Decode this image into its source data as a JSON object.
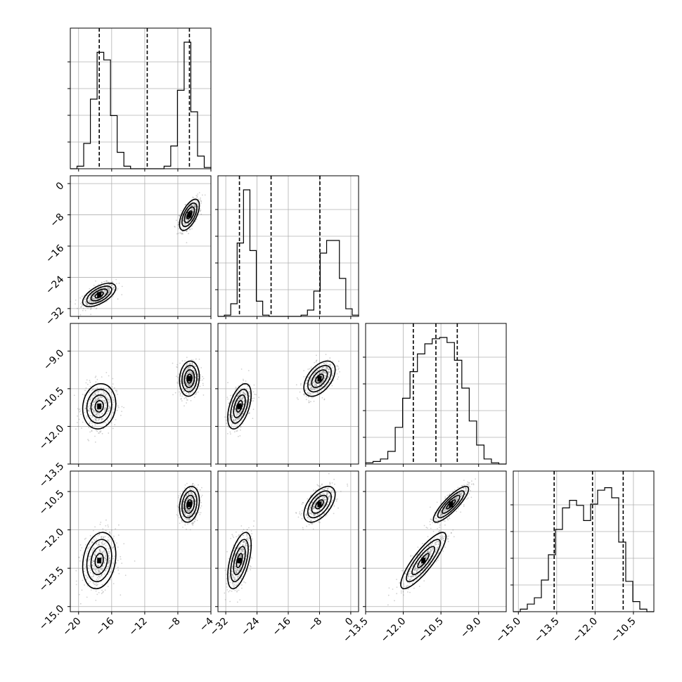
{
  "chart_data": {
    "type": "corner",
    "params": [
      {
        "range": [
          -21,
          -4
        ],
        "ticks": [
          -20,
          -16,
          -12,
          -8,
          -4
        ],
        "tick_labels": [
          "−20",
          "−16",
          "−12",
          "−8",
          "−4"
        ],
        "quantiles": [
          -17.5,
          -11.7,
          -6.6
        ]
      },
      {
        "range": [
          -34,
          2
        ],
        "ticks": [
          -32,
          -24,
          -16,
          -8,
          0
        ],
        "tick_labels": [
          "−32",
          "−24",
          "−16",
          "−8",
          "0"
        ],
        "quantiles": [
          -28.5,
          -20.4,
          -7.9
        ]
      },
      {
        "range": [
          -13.5,
          -7.9
        ],
        "ticks": [
          -13.5,
          -12.0,
          -10.5,
          -9.0
        ],
        "tick_labels": [
          "−13.5",
          "−12.0",
          "−10.5",
          "−9.0"
        ],
        "quantiles": [
          -11.6,
          -10.7,
          -9.85
        ]
      },
      {
        "range": [
          -15.2,
          -9.7
        ],
        "ticks": [
          -15.0,
          -13.5,
          -12.0,
          -10.5
        ],
        "tick_labels": [
          "−15.0",
          "−13.5",
          "−12.0",
          "−10.5"
        ],
        "quantiles": [
          -13.6,
          -12.1,
          -10.9
        ]
      }
    ],
    "histograms": [
      {
        "bins": [
          -21,
          -4
        ],
        "counts": [
          0,
          0.02,
          0.2,
          0.55,
          0.92,
          0.86,
          0.42,
          0.13,
          0.02,
          0,
          0,
          0,
          0,
          0,
          0.02,
          0.18,
          0.62,
          1.0,
          0.45,
          0.1,
          0.01
        ]
      },
      {
        "bins": [
          -34,
          2
        ],
        "counts": [
          0,
          0.01,
          0.1,
          0.58,
          1.0,
          0.52,
          0.12,
          0.01,
          0,
          0,
          0,
          0,
          0,
          0.01,
          0.05,
          0.2,
          0.5,
          0.6,
          0.6,
          0.3,
          0.06,
          0.01
        ]
      },
      {
        "bins": [
          -13.5,
          -7.9
        ],
        "counts": [
          0.01,
          0.02,
          0.04,
          0.1,
          0.29,
          0.52,
          0.73,
          0.87,
          0.95,
          0.99,
          1.0,
          0.96,
          0.82,
          0.6,
          0.34,
          0.15,
          0.04,
          0.01,
          0
        ]
      },
      {
        "bins": [
          -15.2,
          -9.7
        ],
        "counts": [
          0,
          0.02,
          0.06,
          0.11,
          0.25,
          0.45,
          0.65,
          0.82,
          0.88,
          0.84,
          0.72,
          0.85,
          0.96,
          0.98,
          0.9,
          0.55,
          0.24,
          0.08,
          0.02,
          0
        ]
      }
    ],
    "modes": [
      {
        "center": [
          -17.5,
          -28.5,
          -11.2,
          -13.2
        ],
        "sd": [
          1.0,
          1.5,
          0.45,
          0.55
        ],
        "weight": 0.5
      },
      {
        "center": [
          -6.6,
          -8.0,
          -10.1,
          -11.0
        ],
        "sd": [
          0.6,
          2.0,
          0.35,
          0.35
        ],
        "weight": 0.5
      }
    ],
    "correlations": {
      "0-1": 0.6,
      "0-2": 0.1,
      "1-2": 0.5,
      "0-3": 0.2,
      "1-3": 0.55,
      "2-3": 0.85
    },
    "grid": true
  }
}
